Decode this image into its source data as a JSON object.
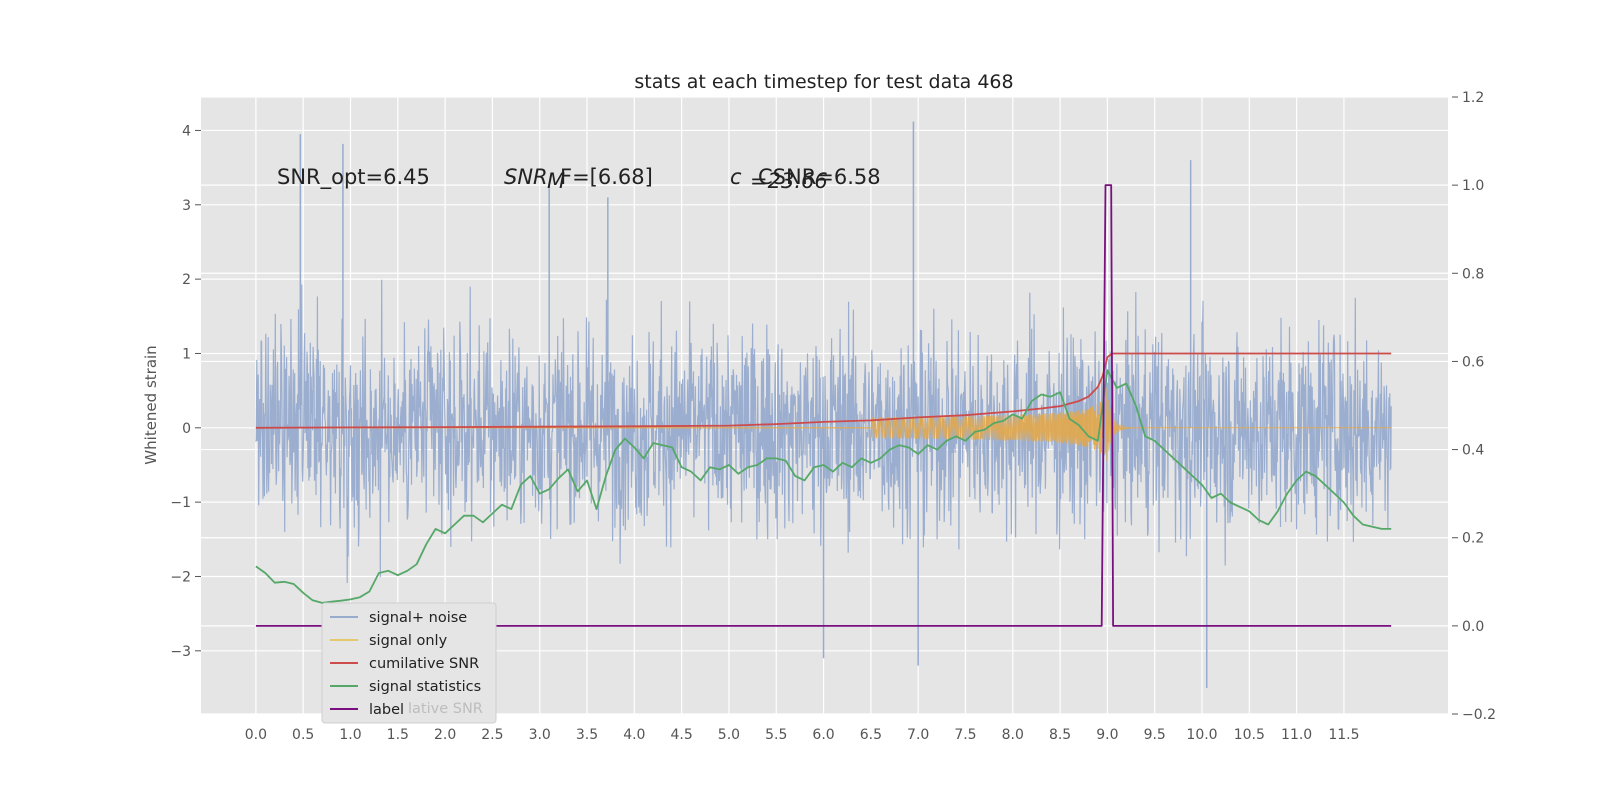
{
  "chart_data": {
    "type": "line",
    "title": "stats at each timestep for test data 468",
    "ylabel": "Whitened strain",
    "xlim": [
      -0.58,
      12.6
    ],
    "ylim": [
      -3.85,
      4.45
    ],
    "y2lim": [
      -0.2,
      1.2
    ],
    "xticks": [
      "0.0",
      "0.5",
      "1.0",
      "1.5",
      "2.0",
      "2.5",
      "3.0",
      "3.5",
      "4.0",
      "4.5",
      "5.0",
      "5.5",
      "6.0",
      "6.5",
      "7.0",
      "7.5",
      "8.0",
      "8.5",
      "9.0",
      "9.5",
      "10.0",
      "10.5",
      "11.0",
      "11.5"
    ],
    "yticks": [
      "−3",
      "−2",
      "−1",
      "0",
      "1",
      "2",
      "3",
      "4"
    ],
    "y2ticks": [
      "−0.2",
      "0.0",
      "0.2",
      "0.4",
      "0.6",
      "0.8",
      "1.0",
      "1.2"
    ],
    "grid": true,
    "legend_position": "lower-left",
    "annotations": [
      "SNR_opt=6.45",
      "SNR",
      "M",
      "F=[6.68]",
      "c",
      "=23.66",
      "CSNR=6.58"
    ],
    "legend_ghost_text": "lative SNR",
    "colors": {
      "background": "#e5e5e5",
      "grid": "#ffffff",
      "signal_noise": "#97abcd",
      "signal_only": "#e3a94b",
      "cumulative_snr": "#cd4b4b",
      "signal_statistics": "#55a868",
      "label": "#7a0f80"
    },
    "series": [
      {
        "name": "signal+ noise",
        "axis": "left",
        "style": "noise",
        "x_range": [
          0,
          12
        ],
        "typical_band": [
          -1.5,
          1.5
        ],
        "peak_max": 4.1,
        "peak_min": -3.5
      },
      {
        "name": "signal only",
        "axis": "left",
        "style": "chirp",
        "x_range": [
          6.5,
          12
        ],
        "merger_time": 8.98,
        "peak_amplitude": 0.6
      },
      {
        "name": "cumilative SNR",
        "axis": "left",
        "x": [
          0,
          1,
          2,
          3,
          4,
          5,
          5.5,
          6,
          6.5,
          7,
          7.5,
          8,
          8.3,
          8.5,
          8.7,
          8.8,
          8.9,
          8.95,
          9.0,
          9.05,
          12
        ],
        "y": [
          0,
          0.005,
          0.01,
          0.015,
          0.02,
          0.03,
          0.05,
          0.08,
          0.1,
          0.14,
          0.17,
          0.22,
          0.26,
          0.29,
          0.36,
          0.42,
          0.55,
          0.7,
          0.95,
          1.0,
          1.0
        ]
      },
      {
        "name": "signal statistics",
        "axis": "right",
        "x": [
          0,
          0.1,
          0.2,
          0.3,
          0.4,
          0.5,
          0.6,
          0.7,
          0.8,
          0.9,
          1.0,
          1.1,
          1.2,
          1.3,
          1.4,
          1.5,
          1.6,
          1.7,
          1.8,
          1.9,
          2.0,
          2.1,
          2.2,
          2.3,
          2.4,
          2.5,
          2.6,
          2.7,
          2.8,
          2.9,
          3.0,
          3.1,
          3.2,
          3.3,
          3.4,
          3.5,
          3.6,
          3.7,
          3.8,
          3.9,
          4.0,
          4.1,
          4.2,
          4.3,
          4.4,
          4.5,
          4.6,
          4.7,
          4.8,
          4.9,
          5.0,
          5.1,
          5.2,
          5.3,
          5.4,
          5.5,
          5.6,
          5.7,
          5.8,
          5.9,
          6.0,
          6.1,
          6.2,
          6.3,
          6.4,
          6.5,
          6.6,
          6.7,
          6.8,
          6.9,
          7.0,
          7.1,
          7.2,
          7.3,
          7.4,
          7.5,
          7.6,
          7.7,
          7.8,
          7.9,
          8.0,
          8.1,
          8.2,
          8.3,
          8.4,
          8.5,
          8.6,
          8.7,
          8.8,
          8.9,
          9.0,
          9.1,
          9.2,
          9.3,
          9.4,
          9.5,
          9.6,
          9.7,
          9.8,
          9.9,
          10.0,
          10.1,
          10.2,
          10.3,
          10.4,
          10.5,
          10.6,
          10.7,
          10.8,
          10.9,
          11.0,
          11.1,
          11.2,
          11.3,
          11.4,
          11.5,
          11.6,
          11.7,
          11.8,
          11.9,
          12.0
        ],
        "y": [
          0.135,
          0.12,
          0.098,
          0.1,
          0.095,
          0.075,
          0.058,
          0.052,
          0.055,
          0.057,
          0.06,
          0.065,
          0.078,
          0.12,
          0.125,
          0.115,
          0.125,
          0.14,
          0.185,
          0.22,
          0.21,
          0.23,
          0.25,
          0.25,
          0.235,
          0.255,
          0.275,
          0.265,
          0.32,
          0.34,
          0.3,
          0.31,
          0.335,
          0.355,
          0.305,
          0.33,
          0.265,
          0.34,
          0.4,
          0.425,
          0.405,
          0.38,
          0.415,
          0.41,
          0.405,
          0.36,
          0.35,
          0.33,
          0.36,
          0.355,
          0.365,
          0.345,
          0.36,
          0.365,
          0.38,
          0.38,
          0.375,
          0.34,
          0.33,
          0.36,
          0.365,
          0.35,
          0.37,
          0.36,
          0.38,
          0.37,
          0.38,
          0.4,
          0.41,
          0.405,
          0.39,
          0.41,
          0.4,
          0.42,
          0.43,
          0.42,
          0.44,
          0.445,
          0.46,
          0.465,
          0.48,
          0.47,
          0.51,
          0.525,
          0.52,
          0.53,
          0.47,
          0.455,
          0.43,
          0.42,
          0.58,
          0.54,
          0.55,
          0.5,
          0.43,
          0.42,
          0.4,
          0.38,
          0.36,
          0.34,
          0.32,
          0.29,
          0.3,
          0.28,
          0.27,
          0.26,
          0.24,
          0.23,
          0.26,
          0.3,
          0.33,
          0.35,
          0.34,
          0.32,
          0.3,
          0.28,
          0.25,
          0.23,
          0.225,
          0.22,
          0.22
        ]
      },
      {
        "name": "label",
        "axis": "right",
        "x": [
          0,
          8.94,
          8.98,
          9.04,
          9.06,
          12
        ],
        "y": [
          0,
          0,
          1.0,
          1.0,
          0,
          0
        ]
      }
    ]
  }
}
